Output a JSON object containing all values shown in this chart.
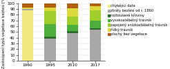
{
  "years": [
    "1960",
    "1995",
    "2010",
    "2017"
  ],
  "categories": [
    "chybějící data",
    "ztráty bezlesí od r. 1860",
    "roztoušené křoviny",
    "vysokostébelný trávník",
    "zapojený snízkostébelný trávník",
    "řídký trávník",
    "plochy bez vegetace"
  ],
  "colors": [
    "#f0e87a",
    "#a8a8a8",
    "#2d6b2d",
    "#4caf3c",
    "#9ecf2a",
    "#dcd93a",
    "#b06010"
  ],
  "data": [
    [
      88,
      0,
      0,
      0
    ],
    [
      2,
      38,
      48,
      54
    ],
    [
      0,
      4,
      4,
      3
    ],
    [
      0,
      22,
      10,
      13
    ],
    [
      0,
      22,
      15,
      18
    ],
    [
      2,
      6,
      14,
      7
    ],
    [
      8,
      8,
      9,
      5
    ]
  ],
  "ylabel": "Zastoupení typů vegetace bezlesí [%]",
  "ylim": [
    0,
    100
  ],
  "yticks": [
    0,
    10,
    20,
    30,
    40,
    50,
    60,
    70,
    80,
    90,
    100
  ],
  "ylabel_fontsize": 4.0,
  "tick_fontsize": 4.2,
  "legend_fontsize": 3.7,
  "bar_width": 0.5,
  "figsize": [
    2.46,
    1.0
  ],
  "dpi": 100
}
